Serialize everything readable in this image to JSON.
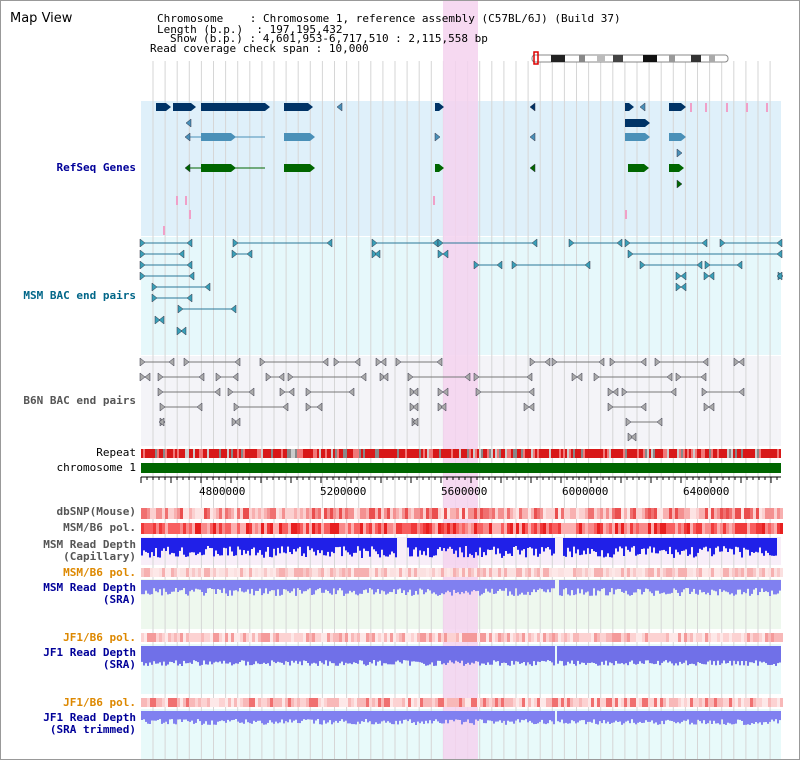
{
  "title": "Map View",
  "info": {
    "chromosome_label": "Chromosome",
    "chromosome_value": "Chromosome 1, reference assembly (C57BL/6J) (Build 37)",
    "length_label": "Length (b.p.)",
    "length_value": "197,195,432",
    "show_label": "Show (b.p.)",
    "show_value": "4,601,953-6,717,510 : 2,115,558 bp",
    "coverage_label": "Read coverage check span",
    "coverage_value": "10,000"
  },
  "tracks": {
    "refseq": "RefSeq Genes",
    "msm_bac": "MSM BAC end pairs",
    "b6n_bac": "B6N BAC end pairs",
    "repeat": "Repeat",
    "chromosome": "chromosome 1",
    "dbsnp": "dbSNP(Mouse)",
    "msm_b6_pol": "MSM/B6 pol.",
    "msm_depth_cap_1": "MSM Read Depth",
    "msm_depth_cap_2": "(Capillary)",
    "msm_b6_pol2": "MSM/B6 pol.",
    "msm_depth_sra_1": "MSM Read Depth",
    "msm_depth_sra_2": "(SRA)",
    "jf1_pol": "JF1/B6 pol.",
    "jf1_depth_1": "JF1 Read Depth",
    "jf1_depth_2": "(SRA)",
    "jf1_pol2": "JF1/B6 pol.",
    "jf1_trim_1": "JF1 Read Depth",
    "jf1_trim_2": "(SRA trimmed)"
  },
  "axis": {
    "ticks": [
      "4800000",
      "5200000",
      "5600000",
      "6000000",
      "6400000"
    ]
  },
  "colors": {
    "label_blue": "#000099",
    "label_teal": "#006688",
    "label_gray": "#555555",
    "label_orange": "#dd8800",
    "refseq_bg": "#dff0fa",
    "msm_bg": "#e6f8fb",
    "b6n_bg": "#f4f4f8",
    "highlight": "#f5d2ef",
    "chrom_green": "#006600"
  }
}
